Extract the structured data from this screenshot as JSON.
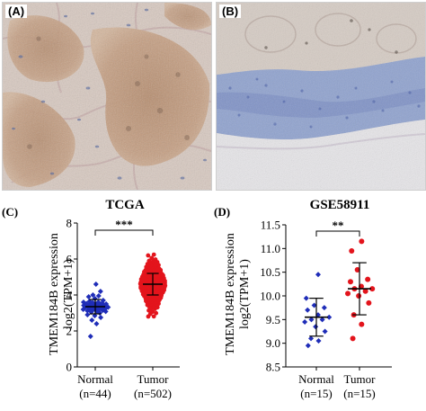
{
  "figure": {
    "panels": {
      "a": {
        "letter": "(A)"
      },
      "b": {
        "letter": "(B)"
      },
      "c": {
        "letter": "(C)"
      },
      "d": {
        "letter": "(D)"
      }
    }
  },
  "chart_data": [
    {
      "type": "scatter",
      "panel": "(C)",
      "title": "TCGA",
      "ylabel": "TMEM184B expression",
      "ylabel2": "log2(TPM+1)",
      "ylim": [
        0,
        8
      ],
      "yticks": [
        0,
        2,
        4,
        6,
        8
      ],
      "significance": "***",
      "categories": [
        {
          "name": "Normal",
          "n_label": "(n=44)",
          "color": "#1f2db8",
          "marker": "diamond",
          "mean": 3.35,
          "sd_low": 2.95,
          "sd_high": 3.75
        },
        {
          "name": "Tumor",
          "n_label": "(n=502)",
          "color": "#e3141c",
          "marker": "circle",
          "mean": 4.6,
          "sd_low": 4.0,
          "sd_high": 5.2
        }
      ],
      "series": [
        {
          "name": "Normal",
          "values": [
            3.3,
            3.5,
            3.2,
            3.4,
            3.1,
            3.6,
            3.0,
            3.45,
            3.35,
            3.25,
            3.55,
            3.15,
            3.7,
            2.9,
            3.8,
            3.05,
            3.4,
            3.3,
            3.5,
            3.2,
            4.2,
            4.6,
            2.4,
            2.6,
            1.7,
            3.9,
            3.65,
            3.38,
            3.28,
            3.48,
            3.58,
            3.18,
            3.08,
            2.85,
            3.95,
            3.42,
            3.32,
            3.22,
            3.52,
            3.12,
            2.75,
            4.0,
            3.6,
            3.3
          ]
        },
        {
          "name": "Tumor",
          "values": []
        }
      ]
    },
    {
      "type": "scatter",
      "panel": "(D)",
      "title": "GSE58911",
      "ylabel": "TMEM184B expression",
      "ylabel2": "log2(TPM+1)",
      "ylim": [
        8.5,
        11.5
      ],
      "yticks": [
        8.5,
        9.0,
        9.5,
        10.0,
        10.5,
        11.0,
        11.5
      ],
      "significance": "**",
      "categories": [
        {
          "name": "Normal",
          "n_label": "(n=15)",
          "color": "#1f2db8",
          "marker": "diamond",
          "mean": 9.55,
          "sd_low": 9.15,
          "sd_high": 9.95
        },
        {
          "name": "Tumor",
          "n_label": "(n=15)",
          "color": "#e3141c",
          "marker": "circle",
          "mean": 10.15,
          "sd_low": 9.6,
          "sd_high": 10.7
        }
      ],
      "series": [
        {
          "name": "Normal",
          "values": [
            10.45,
            9.95,
            9.8,
            9.75,
            9.7,
            9.6,
            9.55,
            9.5,
            9.5,
            9.45,
            9.35,
            9.25,
            9.1,
            9.05,
            8.95
          ]
        },
        {
          "name": "Tumor",
          "values": [
            11.15,
            10.95,
            10.55,
            10.35,
            10.3,
            10.2,
            10.15,
            10.15,
            10.1,
            10.05,
            10.0,
            9.85,
            9.6,
            9.4,
            9.1
          ]
        }
      ]
    }
  ]
}
